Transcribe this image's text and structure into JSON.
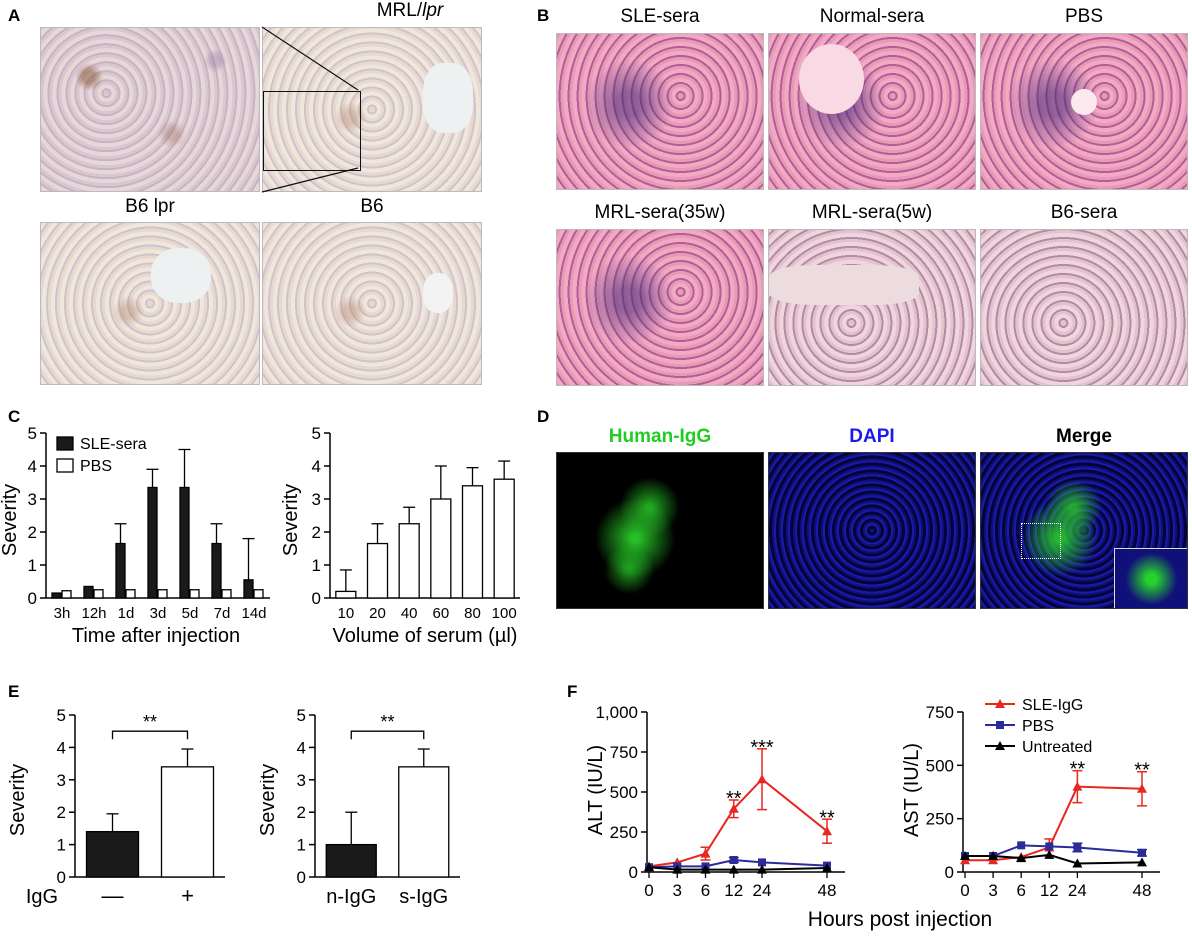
{
  "panels": {
    "A": {
      "label": "A",
      "titles": [
        "MRL/",
        "lpr",
        "B6 lpr",
        "B6"
      ]
    },
    "B": {
      "label": "B",
      "titles": [
        "SLE-sera",
        "Normal-sera",
        "PBS",
        "MRL-sera(35w)",
        "MRL-sera(5w)",
        "B6-sera"
      ]
    },
    "C": {
      "label": "C"
    },
    "D": {
      "label": "D",
      "titles": [
        "Human-IgG",
        "DAPI",
        "Merge"
      ],
      "title_colors": [
        "#22cc22",
        "#1a1aee",
        "#000000"
      ]
    },
    "E": {
      "label": "E"
    },
    "F": {
      "label": "F",
      "shared_xlabel": "Hours post injection"
    }
  },
  "chart_data": [
    {
      "id": "C1",
      "type": "bar",
      "categories": [
        "3h",
        "12h",
        "1d",
        "3d",
        "5d",
        "7d",
        "14d"
      ],
      "series": [
        {
          "name": "SLE-sera",
          "values": [
            0.15,
            0.35,
            1.65,
            3.35,
            3.35,
            1.65,
            0.55
          ],
          "errors": [
            0,
            0,
            0.6,
            0.55,
            1.15,
            0.6,
            1.25
          ],
          "color": "#1a1a1a"
        },
        {
          "name": "PBS",
          "values": [
            0.22,
            0.25,
            0.25,
            0.25,
            0.25,
            0.25,
            0.25
          ],
          "errors": [
            0,
            0,
            0,
            0,
            0,
            0,
            0
          ],
          "color": "#ffffff"
        }
      ],
      "xlabel": "Time after injection",
      "ylabel": "Severity",
      "ylim": [
        0,
        5
      ],
      "yticks": [
        "0",
        "1",
        "2",
        "3",
        "4",
        "5"
      ],
      "legend": "top-left"
    },
    {
      "id": "C2",
      "type": "bar",
      "categories": [
        "10",
        "20",
        "40",
        "60",
        "80",
        "100"
      ],
      "series": [
        {
          "values": [
            0.2,
            1.65,
            2.25,
            3.0,
            3.4,
            3.6
          ],
          "errors": [
            0.65,
            0.6,
            0.5,
            1.0,
            0.55,
            0.55
          ],
          "color": "#ffffff"
        }
      ],
      "xlabel": "Volume of serum (µl)",
      "ylabel": "Severity",
      "ylim": [
        0,
        5
      ],
      "yticks": [
        "0",
        "1",
        "2",
        "3",
        "4",
        "5"
      ]
    },
    {
      "id": "E1",
      "type": "bar",
      "categories": [
        "—",
        "+"
      ],
      "category_prefix": "IgG",
      "series": [
        {
          "values": [
            1.4,
            3.4
          ],
          "errors": [
            0.55,
            0.55
          ],
          "colors": [
            "#1a1a1a",
            "#ffffff"
          ]
        }
      ],
      "ylabel": "Severity",
      "ylim": [
        0,
        5
      ],
      "yticks": [
        "0",
        "1",
        "2",
        "3",
        "4",
        "5"
      ],
      "significance": "**"
    },
    {
      "id": "E2",
      "type": "bar",
      "categories": [
        "n-IgG",
        "s-IgG"
      ],
      "series": [
        {
          "values": [
            1.0,
            3.4
          ],
          "errors": [
            1.0,
            0.55
          ],
          "colors": [
            "#1a1a1a",
            "#ffffff"
          ]
        }
      ],
      "ylabel": "Severity",
      "ylim": [
        0,
        5
      ],
      "yticks": [
        "0",
        "1",
        "2",
        "3",
        "4",
        "5"
      ],
      "significance": "**"
    },
    {
      "id": "F1",
      "type": "line",
      "x": [
        0,
        3,
        6,
        12,
        24,
        48
      ],
      "x_ticks": [
        "0",
        "3",
        "6",
        "12",
        "24",
        "48"
      ],
      "series": [
        {
          "name": "SLE-IgG",
          "values": [
            35,
            60,
            115,
            395,
            580,
            255
          ],
          "errors": [
            0,
            0,
            40,
            55,
            190,
            75
          ],
          "color": "#e8281e",
          "marker": "triangle"
        },
        {
          "name": "PBS",
          "values": [
            30,
            35,
            35,
            75,
            60,
            40
          ],
          "errors": [
            0,
            0,
            0,
            15,
            0,
            0
          ],
          "color": "#2b2b9a",
          "marker": "square"
        },
        {
          "name": "Untreated",
          "values": [
            30,
            15,
            15,
            15,
            15,
            25
          ],
          "errors": [
            0,
            0,
            0,
            0,
            0,
            0
          ],
          "color": "#000000",
          "marker": "triangle"
        }
      ],
      "ylabel": "ALT (IU/L)",
      "ylim": [
        0,
        1000
      ],
      "yticks": [
        "0",
        "250",
        "500",
        "750",
        "1,000"
      ],
      "annotations": [
        {
          "x": 12,
          "y": 455,
          "text": "**"
        },
        {
          "x": 24,
          "y": 775,
          "text": "***"
        },
        {
          "x": 48,
          "y": 335,
          "text": "**"
        }
      ]
    },
    {
      "id": "F2",
      "type": "line",
      "x": [
        0,
        3,
        6,
        12,
        24,
        48
      ],
      "x_ticks": [
        "0",
        "3",
        "6",
        "12",
        "24",
        "48"
      ],
      "series": [
        {
          "name": "SLE-IgG",
          "values": [
            55,
            55,
            70,
            115,
            400,
            390
          ],
          "errors": [
            0,
            0,
            0,
            40,
            75,
            80
          ],
          "color": "#e8281e",
          "marker": "triangle"
        },
        {
          "name": "PBS",
          "values": [
            75,
            75,
            125,
            120,
            115,
            90
          ],
          "errors": [
            0,
            0,
            0,
            0,
            20,
            15
          ],
          "color": "#2b2b9a",
          "marker": "square"
        },
        {
          "name": "Untreated",
          "values": [
            75,
            75,
            65,
            80,
            40,
            45
          ],
          "errors": [
            0,
            0,
            0,
            0,
            0,
            0
          ],
          "color": "#000000",
          "marker": "triangle"
        }
      ],
      "ylabel": "AST (IU/L)",
      "ylim": [
        0,
        750
      ],
      "yticks": [
        "0",
        "250",
        "500",
        "750"
      ],
      "legend": "top",
      "annotations": [
        {
          "x": 24,
          "y": 480,
          "text": "**"
        },
        {
          "x": 48,
          "y": 475,
          "text": "**"
        }
      ]
    }
  ]
}
